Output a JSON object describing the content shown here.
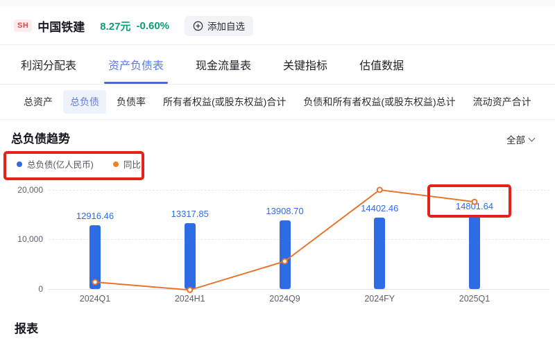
{
  "header": {
    "exchange_badge": "SH",
    "stock_name": "中国铁建",
    "price": "8.27元",
    "change_percent": "-0.60%",
    "add_watchlist_button": "添加自选",
    "price_color": "#0d9c74",
    "badge_color": "#e24848"
  },
  "nav_tabs": {
    "items": [
      {
        "label": "利润分配表",
        "active": false
      },
      {
        "label": "资产负债表",
        "active": true
      },
      {
        "label": "现金流量表",
        "active": false
      },
      {
        "label": "关键指标",
        "active": false
      },
      {
        "label": "估值数据",
        "active": false
      }
    ],
    "active_color": "#5d7ce6"
  },
  "sub_tabs": {
    "items": [
      {
        "label": "总资产",
        "active": false
      },
      {
        "label": "总负债",
        "active": true
      },
      {
        "label": "负债率",
        "active": false
      },
      {
        "label": "所有者权益(或股东权益)合计",
        "active": false
      },
      {
        "label": "负债和所有者权益(或股东权益)总计",
        "active": false
      },
      {
        "label": "流动资产合计",
        "active": false
      }
    ]
  },
  "section": {
    "title": "总负债趋势",
    "range_selector_label": "全部"
  },
  "legend": {
    "items": [
      {
        "label": "总负债(亿人民币)",
        "color": "#2e6ce6"
      },
      {
        "label": "同比",
        "color": "#f5821f"
      }
    ]
  },
  "chart_data": {
    "type": "bar",
    "categories": [
      "2024Q1",
      "2024H1",
      "2024Q9",
      "2024FY",
      "2025Q1"
    ],
    "series": [
      {
        "name": "总负债(亿人民币)",
        "type": "bar",
        "color": "#2e6ce6",
        "values": [
          12916.46,
          13317.85,
          13908.7,
          14402.46,
          14801.64
        ],
        "value_labels": [
          "12916.46",
          "13317.85",
          "13908.70",
          "14402.46",
          "14801.64"
        ]
      },
      {
        "name": "同比",
        "type": "line",
        "color": "#e8742c",
        "relative_heights": [
          0.07,
          -0.01,
          0.28,
          1.0,
          0.88
        ]
      }
    ],
    "y_axis": {
      "tick_labels": [
        "20,000",
        "10,000",
        "0"
      ],
      "max": 20000,
      "min": 0
    },
    "grid": true,
    "legend_position": "top-left"
  },
  "annotations": {
    "color": "#e32318",
    "boxes": [
      {
        "target": "legend"
      },
      {
        "target": "latest-value-label"
      }
    ]
  },
  "report_section": {
    "title": "报表"
  }
}
